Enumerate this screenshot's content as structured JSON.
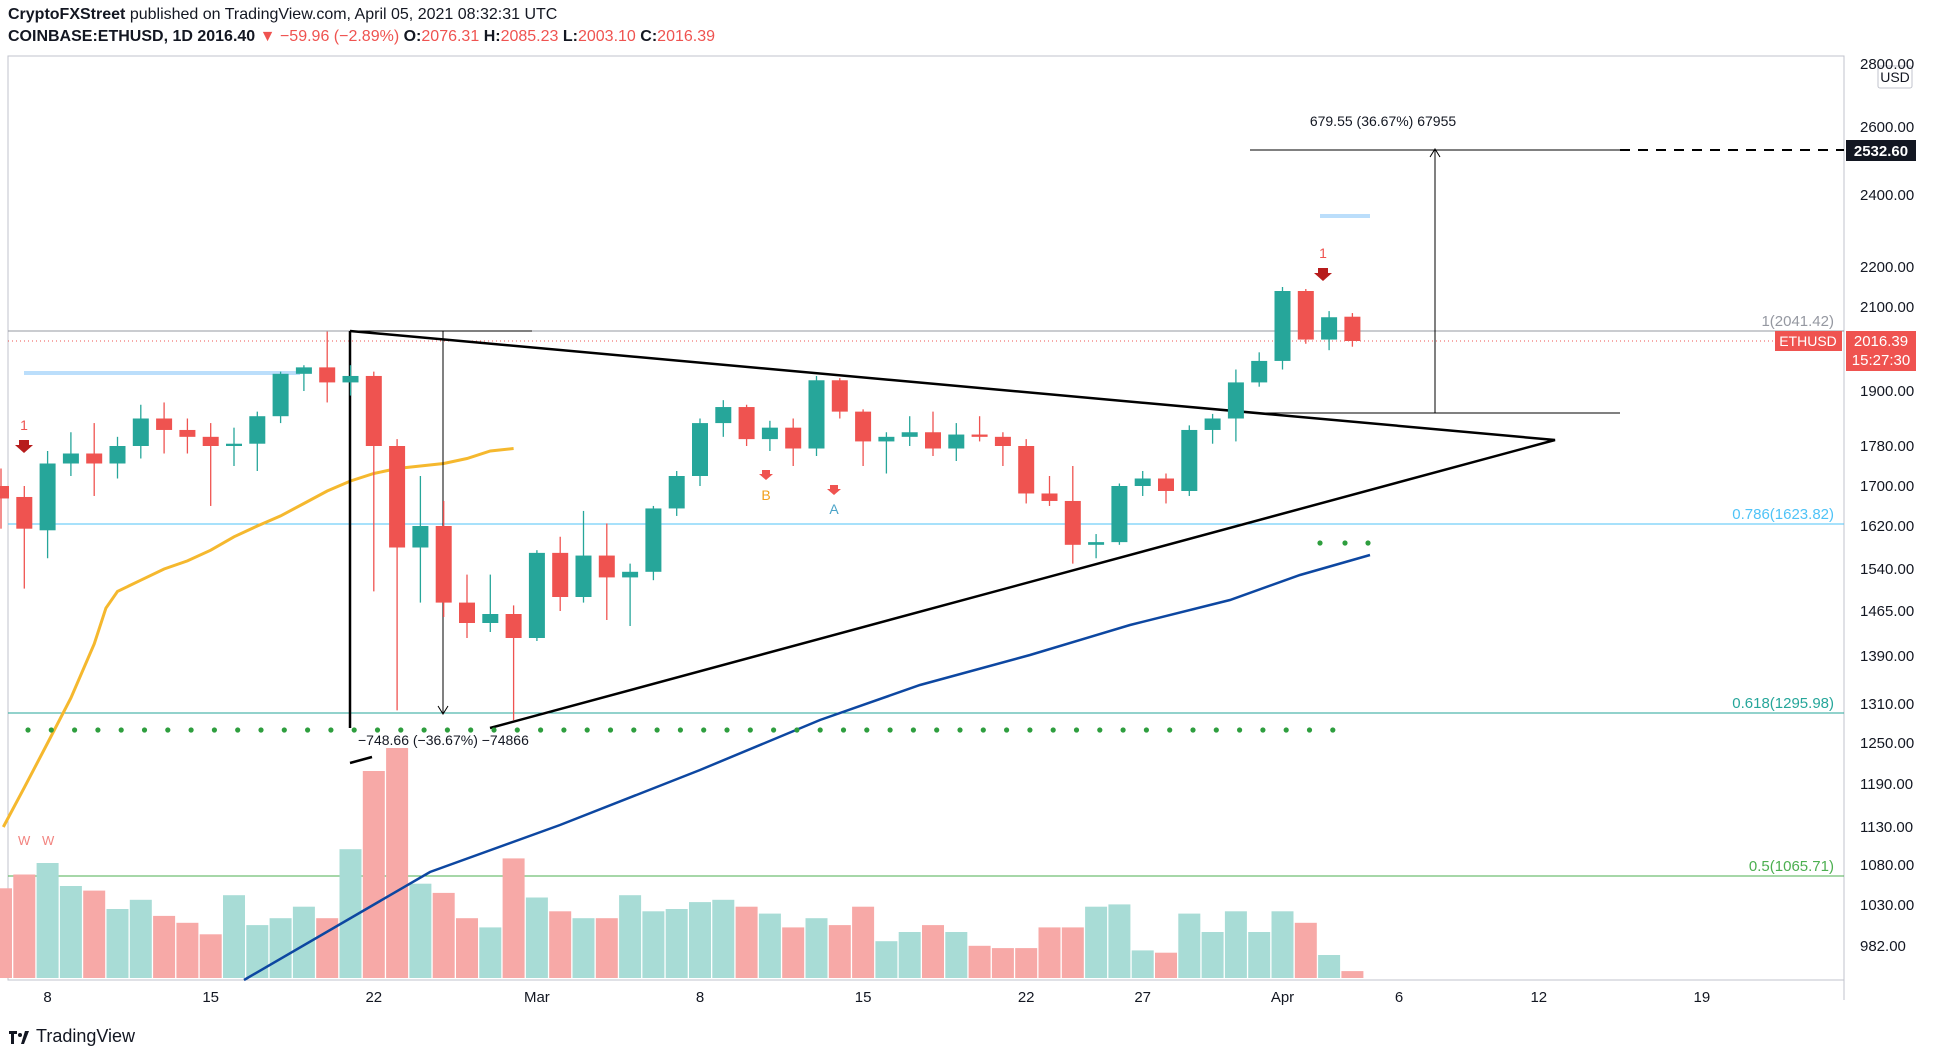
{
  "header": {
    "publisher": "CryptoFXStreet",
    "published_text": "published on TradingView.com, April 05, 2021 08:32:31 UTC",
    "symbol": "COINBASE:ETHUSD, 1D",
    "last": "2016.40",
    "change": "−59.96 (−2.89%)",
    "o_label": "O:",
    "o_value": "2076.31",
    "h_label": "H:",
    "h_value": "2085.23",
    "l_label": "L:",
    "l_value": "2003.10",
    "c_label": "C:",
    "c_value": "2016.39"
  },
  "footer": {
    "brand": "TradingView"
  },
  "colors": {
    "up": "#26a69a",
    "down": "#ef5350",
    "ma50": "#f5b82e",
    "ma200": "#0d47a1",
    "fib_786": "#4fc3f7",
    "fib_618": "#26a69a",
    "fib_05": "#4caf50"
  },
  "chart_data": {
    "type": "candlestick",
    "currency": "USD",
    "x_ticks": [
      "8",
      "15",
      "22",
      "Mar",
      "8",
      "15",
      "22",
      "27",
      "Apr",
      "6",
      "12",
      "19"
    ],
    "y_ticks": [
      "2800.00",
      "2600.00",
      "2400.00",
      "2200.00",
      "2100.00",
      "1900.00",
      "1780.00",
      "1700.00",
      "1620.00",
      "1540.00",
      "1465.00",
      "1390.00",
      "1310.00",
      "1250.00",
      "1190.00",
      "1130.00",
      "1080.00",
      "1030.00",
      "982.00"
    ],
    "y_axis_points": [
      [
        2800,
        64
      ],
      [
        2600,
        127
      ],
      [
        2532.6,
        150
      ],
      [
        2400,
        195
      ],
      [
        2200,
        267
      ],
      [
        2100,
        307
      ],
      [
        2041.42,
        331
      ],
      [
        2016.39,
        341
      ],
      [
        1900,
        391
      ],
      [
        1780,
        446
      ],
      [
        1700,
        486
      ],
      [
        1623.82,
        524
      ],
      [
        1620,
        526
      ],
      [
        1540,
        569
      ],
      [
        1465,
        611
      ],
      [
        1390,
        656
      ],
      [
        1310,
        704
      ],
      [
        1295.98,
        713
      ],
      [
        1250,
        743
      ],
      [
        1190,
        784
      ],
      [
        1130,
        827
      ],
      [
        1080,
        865
      ],
      [
        1065.71,
        876
      ],
      [
        1030,
        905
      ],
      [
        982,
        946
      ]
    ],
    "candles": [
      {
        "date": "2021-02-06",
        "o": 1700,
        "h": 1735,
        "l": 1615,
        "c": 1675
      },
      {
        "date": "2021-02-07",
        "o": 1678,
        "h": 1700,
        "l": 1505,
        "c": 1615
      },
      {
        "date": "2021-02-08",
        "o": 1612,
        "h": 1770,
        "l": 1560,
        "c": 1745
      },
      {
        "date": "2021-02-09",
        "o": 1745,
        "h": 1810,
        "l": 1720,
        "c": 1765
      },
      {
        "date": "2021-02-10",
        "o": 1765,
        "h": 1830,
        "l": 1680,
        "c": 1745
      },
      {
        "date": "2021-02-11",
        "o": 1745,
        "h": 1800,
        "l": 1715,
        "c": 1780
      },
      {
        "date": "2021-02-12",
        "o": 1780,
        "h": 1870,
        "l": 1755,
        "c": 1840
      },
      {
        "date": "2021-02-13",
        "o": 1840,
        "h": 1875,
        "l": 1765,
        "c": 1815
      },
      {
        "date": "2021-02-14",
        "o": 1815,
        "h": 1840,
        "l": 1765,
        "c": 1800
      },
      {
        "date": "2021-02-15",
        "o": 1800,
        "h": 1830,
        "l": 1660,
        "c": 1780
      },
      {
        "date": "2021-02-16",
        "o": 1780,
        "h": 1820,
        "l": 1740,
        "c": 1785
      },
      {
        "date": "2021-02-17",
        "o": 1785,
        "h": 1855,
        "l": 1730,
        "c": 1845
      },
      {
        "date": "2021-02-18",
        "o": 1845,
        "h": 1945,
        "l": 1830,
        "c": 1940
      },
      {
        "date": "2021-02-19",
        "o": 1940,
        "h": 1960,
        "l": 1900,
        "c": 1955
      },
      {
        "date": "2021-02-20",
        "o": 1955,
        "h": 2040,
        "l": 1875,
        "c": 1920
      },
      {
        "date": "2021-02-21",
        "o": 1920,
        "h": 1960,
        "l": 1890,
        "c": 1935
      },
      {
        "date": "2021-02-22",
        "o": 1935,
        "h": 1945,
        "l": 1500,
        "c": 1780
      },
      {
        "date": "2021-02-23",
        "o": 1780,
        "h": 1795,
        "l": 1300,
        "c": 1580
      },
      {
        "date": "2021-02-24",
        "o": 1580,
        "h": 1720,
        "l": 1480,
        "c": 1620
      },
      {
        "date": "2021-02-25",
        "o": 1620,
        "h": 1670,
        "l": 1455,
        "c": 1480
      },
      {
        "date": "2021-02-26",
        "o": 1480,
        "h": 1530,
        "l": 1420,
        "c": 1445
      },
      {
        "date": "2021-02-27",
        "o": 1445,
        "h": 1530,
        "l": 1430,
        "c": 1460
      },
      {
        "date": "2021-02-28",
        "o": 1460,
        "h": 1475,
        "l": 1285,
        "c": 1420
      },
      {
        "date": "2021-03-01",
        "o": 1420,
        "h": 1575,
        "l": 1415,
        "c": 1570
      },
      {
        "date": "2021-03-02",
        "o": 1570,
        "h": 1600,
        "l": 1465,
        "c": 1490
      },
      {
        "date": "2021-03-03",
        "o": 1490,
        "h": 1650,
        "l": 1480,
        "c": 1565
      },
      {
        "date": "2021-03-04",
        "o": 1565,
        "h": 1625,
        "l": 1450,
        "c": 1525
      },
      {
        "date": "2021-03-05",
        "o": 1525,
        "h": 1550,
        "l": 1440,
        "c": 1535
      },
      {
        "date": "2021-03-06",
        "o": 1535,
        "h": 1660,
        "l": 1520,
        "c": 1655
      },
      {
        "date": "2021-03-07",
        "o": 1655,
        "h": 1730,
        "l": 1640,
        "c": 1720
      },
      {
        "date": "2021-03-08",
        "o": 1720,
        "h": 1840,
        "l": 1700,
        "c": 1830
      },
      {
        "date": "2021-03-09",
        "o": 1830,
        "h": 1880,
        "l": 1800,
        "c": 1865
      },
      {
        "date": "2021-03-10",
        "o": 1865,
        "h": 1870,
        "l": 1780,
        "c": 1795
      },
      {
        "date": "2021-03-11",
        "o": 1795,
        "h": 1835,
        "l": 1770,
        "c": 1820
      },
      {
        "date": "2021-03-12",
        "o": 1820,
        "h": 1840,
        "l": 1740,
        "c": 1775
      },
      {
        "date": "2021-03-13",
        "o": 1775,
        "h": 1935,
        "l": 1760,
        "c": 1925
      },
      {
        "date": "2021-03-14",
        "o": 1925,
        "h": 1930,
        "l": 1840,
        "c": 1855
      },
      {
        "date": "2021-03-15",
        "o": 1855,
        "h": 1860,
        "l": 1740,
        "c": 1790
      },
      {
        "date": "2021-03-16",
        "o": 1790,
        "h": 1810,
        "l": 1725,
        "c": 1800
      },
      {
        "date": "2021-03-17",
        "o": 1800,
        "h": 1845,
        "l": 1780,
        "c": 1810
      },
      {
        "date": "2021-03-18",
        "o": 1810,
        "h": 1855,
        "l": 1760,
        "c": 1775
      },
      {
        "date": "2021-03-19",
        "o": 1775,
        "h": 1830,
        "l": 1750,
        "c": 1805
      },
      {
        "date": "2021-03-20",
        "o": 1805,
        "h": 1845,
        "l": 1790,
        "c": 1800
      },
      {
        "date": "2021-03-21",
        "o": 1800,
        "h": 1810,
        "l": 1740,
        "c": 1780
      },
      {
        "date": "2021-03-22",
        "o": 1780,
        "h": 1795,
        "l": 1665,
        "c": 1685
      },
      {
        "date": "2021-03-23",
        "o": 1685,
        "h": 1720,
        "l": 1660,
        "c": 1670
      },
      {
        "date": "2021-03-24",
        "o": 1670,
        "h": 1740,
        "l": 1550,
        "c": 1585
      },
      {
        "date": "2021-03-25",
        "o": 1585,
        "h": 1605,
        "l": 1560,
        "c": 1590
      },
      {
        "date": "2021-03-26",
        "o": 1590,
        "h": 1705,
        "l": 1585,
        "c": 1700
      },
      {
        "date": "2021-03-27",
        "o": 1700,
        "h": 1730,
        "l": 1680,
        "c": 1715
      },
      {
        "date": "2021-03-28",
        "o": 1715,
        "h": 1725,
        "l": 1665,
        "c": 1690
      },
      {
        "date": "2021-03-29",
        "o": 1690,
        "h": 1825,
        "l": 1680,
        "c": 1815
      },
      {
        "date": "2021-03-30",
        "o": 1815,
        "h": 1850,
        "l": 1785,
        "c": 1840
      },
      {
        "date": "2021-03-31",
        "o": 1840,
        "h": 1950,
        "l": 1790,
        "c": 1920
      },
      {
        "date": "2021-04-01",
        "o": 1920,
        "h": 1990,
        "l": 1910,
        "c": 1970
      },
      {
        "date": "2021-04-02",
        "o": 1970,
        "h": 2150,
        "l": 1950,
        "c": 2140
      },
      {
        "date": "2021-04-03",
        "o": 2140,
        "h": 2145,
        "l": 2010,
        "c": 2020
      },
      {
        "date": "2021-04-04",
        "o": 2020,
        "h": 2090,
        "l": 1995,
        "c": 2075
      },
      {
        "date": "2021-04-05",
        "o": 2076.31,
        "h": 2085.23,
        "l": 2003.1,
        "c": 2016.39
      }
    ],
    "volume_relative": [
      0.39,
      0.45,
      0.5,
      0.4,
      0.38,
      0.3,
      0.34,
      0.27,
      0.24,
      0.19,
      0.36,
      0.23,
      0.26,
      0.31,
      0.26,
      0.56,
      0.9,
      1.0,
      0.41,
      0.37,
      0.26,
      0.22,
      0.52,
      0.35,
      0.29,
      0.26,
      0.26,
      0.36,
      0.29,
      0.3,
      0.33,
      0.34,
      0.31,
      0.28,
      0.22,
      0.26,
      0.23,
      0.31,
      0.16,
      0.2,
      0.23,
      0.2,
      0.14,
      0.13,
      0.13,
      0.22,
      0.22,
      0.31,
      0.32,
      0.12,
      0.11,
      0.28,
      0.2,
      0.29,
      0.2,
      0.29,
      0.24,
      0.1,
      0.03
    ],
    "ma50": [
      [
        1,
        1130
      ],
      [
        10,
        1185
      ],
      [
        20,
        1250
      ],
      [
        30,
        1320
      ],
      [
        40,
        1410
      ],
      [
        45,
        1470
      ],
      [
        50,
        1500
      ],
      [
        60,
        1520
      ],
      [
        70,
        1540
      ],
      [
        80,
        1555
      ],
      [
        90,
        1575
      ],
      [
        100,
        1600
      ],
      [
        110,
        1620
      ],
      [
        120,
        1640
      ],
      [
        130,
        1665
      ],
      [
        140,
        1690
      ],
      [
        150,
        1710
      ],
      [
        160,
        1725
      ],
      [
        170,
        1735
      ],
      [
        180,
        1740
      ],
      [
        190,
        1745
      ],
      [
        200,
        1755
      ],
      [
        210,
        1770
      ],
      [
        220,
        1775
      ]
    ],
    "ma200": [
      [
        0,
        0
      ],
      [
        20,
        0
      ],
      [
        40,
        0
      ],
      [
        60,
        1070
      ],
      [
        70,
        1130
      ],
      [
        80,
        1190
      ],
      [
        90,
        1240
      ],
      [
        100,
        1290
      ],
      [
        110,
        1330
      ],
      [
        120,
        1370
      ],
      [
        130,
        1410
      ],
      [
        140,
        1440
      ],
      [
        150,
        1470
      ],
      [
        160,
        1500
      ],
      [
        170,
        1525
      ],
      [
        180,
        1550
      ],
      [
        190,
        1570
      ],
      [
        200,
        1590
      ],
      [
        210,
        1610
      ],
      [
        220,
        1640
      ],
      [
        230,
        1660
      ]
    ],
    "fib_levels": [
      {
        "label": "1(2041.42)",
        "value": 2041.42
      },
      {
        "label": "0.786(1623.82)",
        "value": 1623.82
      },
      {
        "label": "0.618(1295.98)",
        "value": 1295.98
      },
      {
        "label": "0.5(1065.71)",
        "value": 1065.71
      }
    ],
    "price_labels": {
      "target": "2532.60",
      "last_symbol": "ETHUSD",
      "last": "2016.39",
      "countdown": "15:27:30"
    },
    "measure_down_label": "−748.66 (−36.67%) −74866",
    "measure_up_label": "679.55 (36.67%) 67955",
    "markers": {
      "signal_1": "1",
      "b": "B",
      "a": "A",
      "w": "W"
    }
  }
}
